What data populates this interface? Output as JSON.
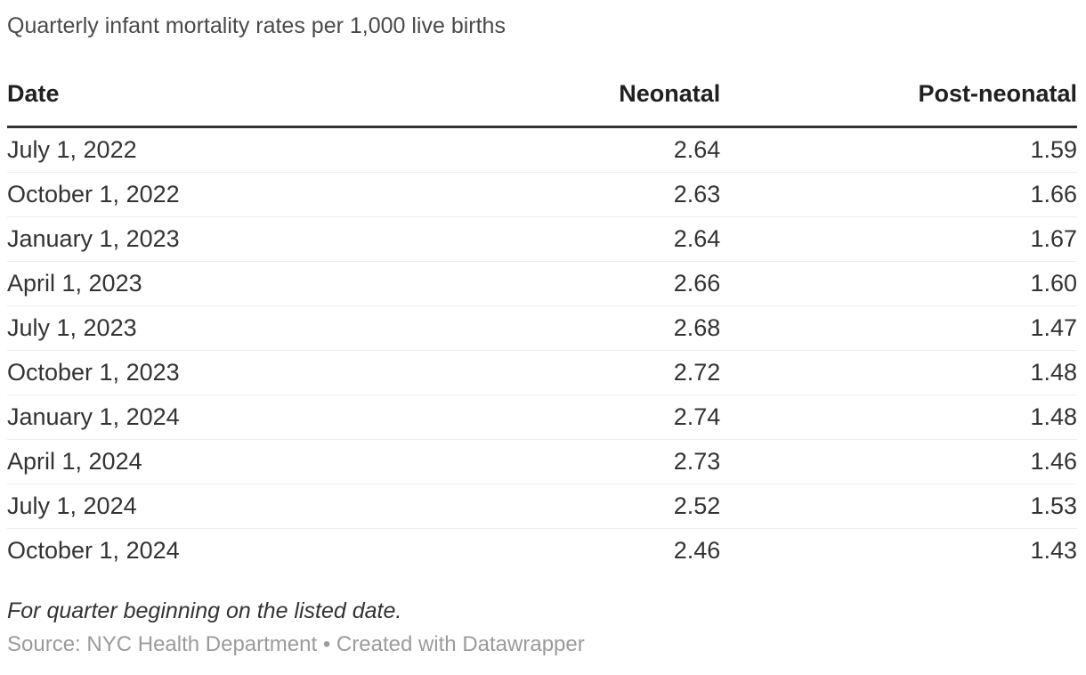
{
  "chart_data": {
    "type": "table",
    "title": "Quarterly infant mortality rates per 1,000 live births",
    "columns": [
      "Date",
      "Neonatal",
      "Post-neonatal"
    ],
    "rows": [
      [
        "July 1, 2022",
        "2.64",
        "1.59"
      ],
      [
        "October 1, 2022",
        "2.63",
        "1.66"
      ],
      [
        "January 1, 2023",
        "2.64",
        "1.67"
      ],
      [
        "April 1, 2023",
        "2.66",
        "1.60"
      ],
      [
        "July 1, 2023",
        "2.68",
        "1.47"
      ],
      [
        "October 1, 2023",
        "2.72",
        "1.48"
      ],
      [
        "January 1, 2024",
        "2.74",
        "1.48"
      ],
      [
        "April 1, 2024",
        "2.73",
        "1.46"
      ],
      [
        "July 1, 2024",
        "2.52",
        "1.53"
      ],
      [
        "October 1, 2024",
        "2.46",
        "1.43"
      ]
    ],
    "footnote": "For quarter beginning on the listed date.",
    "source": "NYC Health Department",
    "layout_hints": {
      "numeric_columns_right_aligned": true,
      "header_rule": "3px solid",
      "row_rule": "1px light"
    }
  },
  "footer": {
    "note": "For quarter beginning on the listed date.",
    "source_label": "Source:",
    "source": "NYC Health Department",
    "separator": "•",
    "attribution": "Created with Datawrapper"
  },
  "colors": {
    "title_text": "#494949",
    "header_text": "#202020",
    "body_text": "#333333",
    "rule_heavy": "#333333",
    "rule_light": "#ededed",
    "muted_text": "#9b9b9b",
    "background": "#ffffff"
  }
}
